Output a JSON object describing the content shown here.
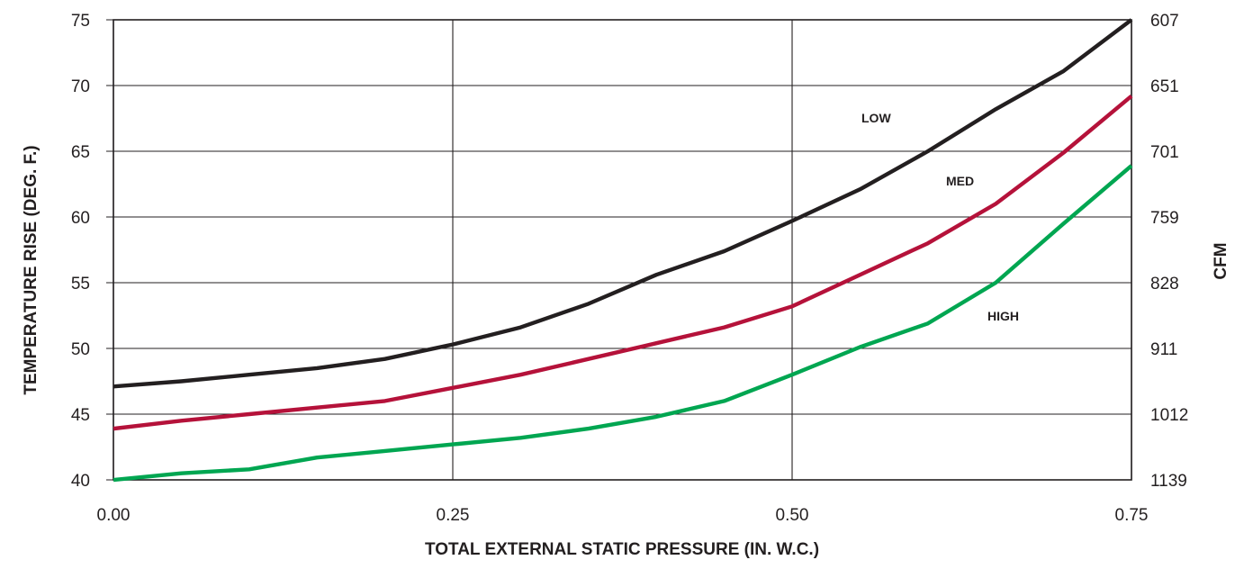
{
  "chart_data": {
    "type": "line",
    "xlabel": "TOTAL EXTERNAL STATIC PRESSURE (IN. W.C.)",
    "ylabel": "TEMPERATURE RISE (DEG. F.)",
    "y2label": "CFM",
    "xlim": [
      0,
      0.75
    ],
    "ylim": [
      40,
      75
    ],
    "x_ticks": [
      "0.00",
      "0.25",
      "0.50",
      "0.75"
    ],
    "y_ticks": [
      "40",
      "45",
      "50",
      "55",
      "60",
      "65",
      "70",
      "75"
    ],
    "y2_ticks": [
      "1139",
      "1012",
      "911",
      "828",
      "759",
      "701",
      "651",
      "607"
    ],
    "grid": true,
    "series": [
      {
        "name": "LOW",
        "color": "#231f20",
        "x": [
          0,
          0.05,
          0.1,
          0.15,
          0.2,
          0.25,
          0.3,
          0.35,
          0.4,
          0.45,
          0.5,
          0.55,
          0.6,
          0.65,
          0.7,
          0.75
        ],
        "y": [
          47.1,
          47.5,
          48.0,
          48.5,
          49.2,
          50.3,
          51.6,
          53.4,
          55.6,
          57.4,
          59.7,
          62.1,
          65.0,
          68.2,
          71.1,
          75.0
        ]
      },
      {
        "name": "MED",
        "color": "#b5123a",
        "x": [
          0,
          0.05,
          0.1,
          0.15,
          0.2,
          0.25,
          0.3,
          0.35,
          0.4,
          0.45,
          0.5,
          0.55,
          0.6,
          0.65,
          0.7,
          0.75
        ],
        "y": [
          43.9,
          44.5,
          45.0,
          45.5,
          46.0,
          47.0,
          48.0,
          49.2,
          50.4,
          51.6,
          53.2,
          55.6,
          58.0,
          61.0,
          64.9,
          69.2
        ]
      },
      {
        "name": "HIGH",
        "color": "#00a651",
        "x": [
          0,
          0.05,
          0.1,
          0.15,
          0.2,
          0.25,
          0.3,
          0.35,
          0.4,
          0.45,
          0.5,
          0.55,
          0.6,
          0.65,
          0.7,
          0.75
        ],
        "y": [
          40.0,
          40.5,
          40.8,
          41.7,
          42.2,
          42.7,
          43.2,
          43.9,
          44.8,
          46.0,
          48.0,
          50.1,
          51.9,
          55.0,
          59.5,
          63.9
        ]
      }
    ]
  }
}
